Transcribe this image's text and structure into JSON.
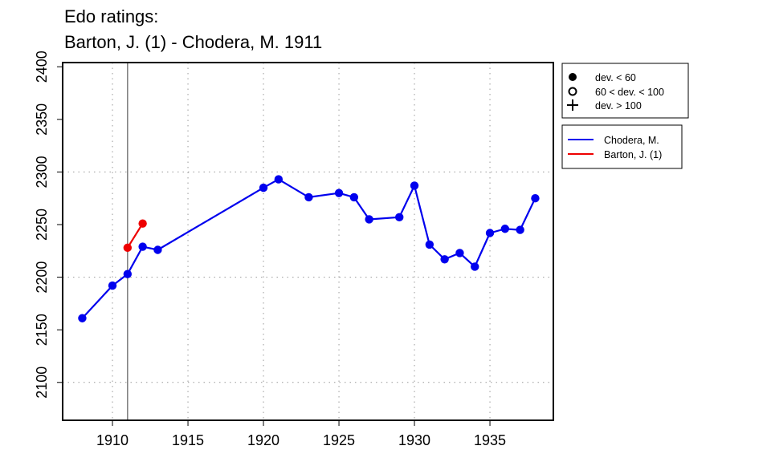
{
  "chart_data": {
    "type": "line",
    "title": [
      "Edo ratings:",
      "Barton, J. (1) - Chodera, M. 1911"
    ],
    "xlabel": "",
    "ylabel": "",
    "xlim": [
      1906.7,
      1939.2
    ],
    "ylim": [
      2064,
      2404
    ],
    "x_ticks": [
      1910,
      1915,
      1920,
      1925,
      1930,
      1935
    ],
    "y_ticks": [
      2100,
      2150,
      2200,
      2250,
      2300,
      2350,
      2400
    ],
    "grid": "dotted, at x = 1910,1915,1920,1925,1930,1935 and y = 2100,2200,2300",
    "reference_line_x": 1911,
    "series": [
      {
        "name": "Chodera, M.",
        "color": "#0000ee",
        "marker": "filled-circle",
        "x": [
          1908,
          1910,
          1911,
          1912,
          1913,
          1920,
          1921,
          1923,
          1925,
          1926,
          1927,
          1929,
          1930,
          1931,
          1932,
          1933,
          1934,
          1935,
          1936,
          1937,
          1938
        ],
        "y": [
          2161,
          2192,
          2203,
          2229,
          2226,
          2285,
          2293,
          2276,
          2280,
          2276,
          2255,
          2257,
          2287,
          2231,
          2217,
          2223,
          2210,
          2242,
          2246,
          2245,
          2275
        ]
      },
      {
        "name": "Barton, J. (1)",
        "color": "#ee0000",
        "marker": "filled-circle",
        "x": [
          1911,
          1912
        ],
        "y": [
          2228,
          2251
        ]
      }
    ],
    "legend_markers": {
      "placement": "right",
      "entries": [
        {
          "symbol": "filled-circle",
          "label": "dev. < 60"
        },
        {
          "symbol": "open-circle",
          "label": "60 < dev. < 100"
        },
        {
          "symbol": "plus",
          "label": "dev. > 100"
        }
      ]
    },
    "legend_series": {
      "placement": "right",
      "entries": [
        {
          "color": "#0000ee",
          "label": "Chodera, M."
        },
        {
          "color": "#ee0000",
          "label": "Barton, J. (1)"
        }
      ]
    }
  }
}
